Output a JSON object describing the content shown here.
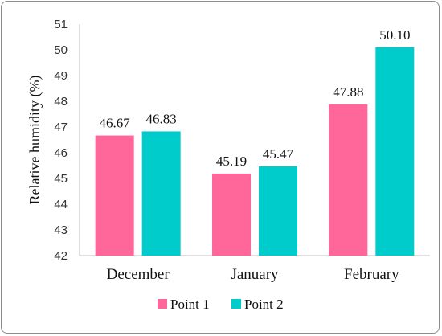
{
  "chart_data": {
    "type": "bar",
    "title": "",
    "xlabel": "",
    "ylabel": "Relative humidity (%)",
    "categories": [
      "December",
      "January",
      "February"
    ],
    "series": [
      {
        "name": "Point 1",
        "color": "#ff6699",
        "values": [
          46.67,
          45.19,
          47.88
        ],
        "labels": [
          "46.67",
          "45.19",
          "47.88"
        ]
      },
      {
        "name": "Point 2",
        "color": "#00cccc",
        "values": [
          46.83,
          45.47,
          50.1
        ],
        "labels": [
          "46.83",
          "45.47",
          "50.10"
        ]
      }
    ],
    "ylim": [
      42,
      51
    ],
    "yticks": [
      "42",
      "43",
      "44",
      "45",
      "46",
      "47",
      "48",
      "49",
      "50",
      "51"
    ],
    "grid": false,
    "legend_position": "bottom"
  }
}
